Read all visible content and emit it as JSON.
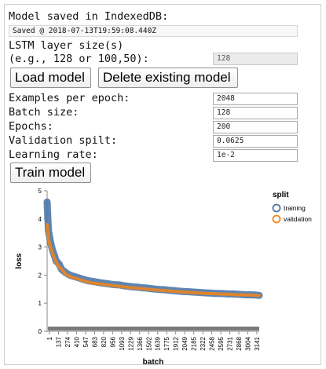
{
  "status": {
    "title": "Model saved in IndexedDB:",
    "saved_text": "Saved @ 2018-07-13T19:59:08.440Z"
  },
  "lstm": {
    "label_line1": "LSTM layer size(s)",
    "label_line2": "(e.g., 128 or 100,50):",
    "value": "128"
  },
  "buttons": {
    "load": "Load model",
    "delete": "Delete existing model",
    "train": "Train model"
  },
  "params": [
    {
      "label": "Examples per epoch:",
      "value": "2048"
    },
    {
      "label": "Batch size:",
      "value": "128"
    },
    {
      "label": "Epochs:",
      "value": "200"
    },
    {
      "label": "Validation spilt:",
      "value": "0.0625"
    },
    {
      "label": "Learning rate:",
      "value": "1e-2"
    }
  ],
  "colors": {
    "training": "#4c78a8",
    "validation": "#f58518"
  },
  "chart_data": {
    "type": "line",
    "xlabel": "batch",
    "ylabel": "loss",
    "legend_title": "split",
    "legend_position": "top-right",
    "ylim": [
      0,
      5
    ],
    "y_ticks": [
      "0",
      "1",
      "2",
      "3",
      "4",
      "5"
    ],
    "x_tick_labels": [
      "1",
      "137",
      "274",
      "410",
      "547",
      "683",
      "820",
      "956",
      "1093",
      "1229",
      "1366",
      "1502",
      "1639",
      "1775",
      "1912",
      "2049",
      "2185",
      "2322",
      "2458",
      "2595",
      "2731",
      "2868",
      "3004",
      "3141"
    ],
    "x_range": [
      1,
      3200
    ],
    "grid": false,
    "series": [
      {
        "name": "training",
        "color": "#4c78a8",
        "x": [
          1,
          20,
          50,
          80,
          110,
          137,
          180,
          220,
          274,
          340,
          410,
          480,
          547,
          620,
          683,
          750,
          820,
          890,
          956,
          1020,
          1093,
          1160,
          1229,
          1300,
          1366,
          1430,
          1502,
          1570,
          1639,
          1700,
          1775,
          1840,
          1912,
          1980,
          2049,
          2120,
          2185,
          2250,
          2322,
          2390,
          2458,
          2530,
          2595,
          2660,
          2731,
          2800,
          2868,
          2940,
          3004,
          3070,
          3141,
          3200
        ],
        "y": [
          4.6,
          3.6,
          3.2,
          2.9,
          2.7,
          2.5,
          2.4,
          2.2,
          2.1,
          2.0,
          1.95,
          1.9,
          1.85,
          1.8,
          1.78,
          1.75,
          1.72,
          1.7,
          1.68,
          1.66,
          1.65,
          1.62,
          1.6,
          1.58,
          1.57,
          1.55,
          1.54,
          1.52,
          1.5,
          1.49,
          1.48,
          1.46,
          1.45,
          1.43,
          1.42,
          1.41,
          1.4,
          1.39,
          1.38,
          1.37,
          1.36,
          1.35,
          1.35,
          1.34,
          1.33,
          1.33,
          1.32,
          1.31,
          1.3,
          1.3,
          1.29,
          1.28
        ]
      },
      {
        "name": "validation",
        "color": "#f58518",
        "x": [
          1,
          20,
          50,
          80,
          110,
          137,
          180,
          220,
          274,
          340,
          410,
          480,
          547,
          620,
          683,
          750,
          820,
          890,
          956,
          1020,
          1093,
          1160,
          1229,
          1300,
          1366,
          1430,
          1502,
          1570,
          1639,
          1700,
          1775,
          1840,
          1912,
          1980,
          2049,
          2120,
          2185,
          2250,
          2322,
          2390,
          2458,
          2530,
          2595,
          2660,
          2731,
          2800,
          2868,
          2940,
          3004,
          3070,
          3141,
          3200
        ],
        "y": [
          3.8,
          3.3,
          3.0,
          2.8,
          2.6,
          2.45,
          2.3,
          2.2,
          2.05,
          1.95,
          1.9,
          1.85,
          1.8,
          1.75,
          1.72,
          1.7,
          1.68,
          1.66,
          1.64,
          1.62,
          1.6,
          1.58,
          1.56,
          1.55,
          1.53,
          1.52,
          1.5,
          1.49,
          1.47,
          1.46,
          1.45,
          1.44,
          1.42,
          1.41,
          1.4,
          1.39,
          1.38,
          1.37,
          1.36,
          1.35,
          1.34,
          1.34,
          1.33,
          1.32,
          1.32,
          1.31,
          1.3,
          1.3,
          1.29,
          1.29,
          1.28,
          1.28
        ]
      }
    ]
  }
}
